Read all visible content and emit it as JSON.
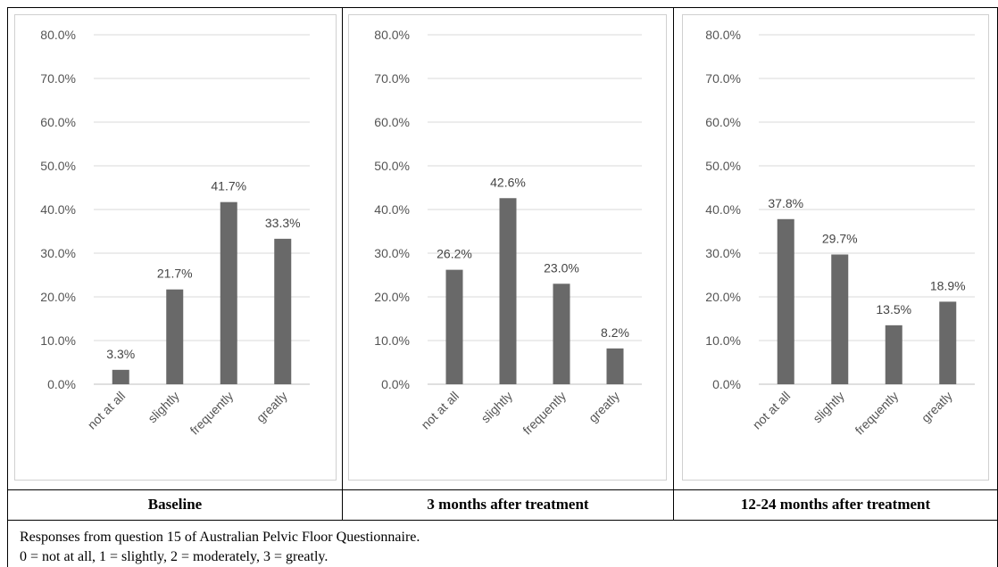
{
  "chart_data": [
    {
      "type": "bar",
      "title": "",
      "caption": "Baseline",
      "categories": [
        "not at all",
        "slightly",
        "frequently",
        "greatly"
      ],
      "values": [
        3.3,
        21.7,
        41.7,
        33.3
      ],
      "data_labels": [
        "3.3%",
        "21.7%",
        "41.7%",
        "33.3%"
      ],
      "y_ticks": [
        "0.0%",
        "10.0%",
        "20.0%",
        "30.0%",
        "40.0%",
        "50.0%",
        "60.0%",
        "70.0%",
        "80.0%"
      ],
      "ylim": [
        0,
        80
      ],
      "grid": true,
      "bar_color": "#696969"
    },
    {
      "type": "bar",
      "title": "",
      "caption": "3 months after treatment",
      "categories": [
        "not at all",
        "slightly",
        "frequently",
        "greatly"
      ],
      "values": [
        26.2,
        42.6,
        23.0,
        8.2
      ],
      "data_labels": [
        "26.2%",
        "42.6%",
        "23.0%",
        "8.2%"
      ],
      "y_ticks": [
        "0.0%",
        "10.0%",
        "20.0%",
        "30.0%",
        "40.0%",
        "50.0%",
        "60.0%",
        "70.0%",
        "80.0%"
      ],
      "ylim": [
        0,
        80
      ],
      "grid": true,
      "bar_color": "#696969"
    },
    {
      "type": "bar",
      "title": "",
      "caption": "12-24 months after treatment",
      "categories": [
        "not at all",
        "slightly",
        "frequently",
        "greatly"
      ],
      "values": [
        37.8,
        29.7,
        13.5,
        18.9
      ],
      "data_labels": [
        "37.8%",
        "29.7%",
        "13.5%",
        "18.9%"
      ],
      "y_ticks": [
        "0.0%",
        "10.0%",
        "20.0%",
        "30.0%",
        "40.0%",
        "50.0%",
        "60.0%",
        "70.0%",
        "80.0%"
      ],
      "ylim": [
        0,
        80
      ],
      "grid": true,
      "bar_color": "#696969"
    }
  ],
  "footnote": {
    "line1": "Responses from question 15 of Australian Pelvic Floor Questionnaire.",
    "line2": "0 = not at all, 1 = slightly, 2 = moderately, 3 = greatly."
  },
  "colors": {
    "bar": "#696969",
    "grid": "#d9d9d9",
    "axis": "#bfbfbf"
  }
}
